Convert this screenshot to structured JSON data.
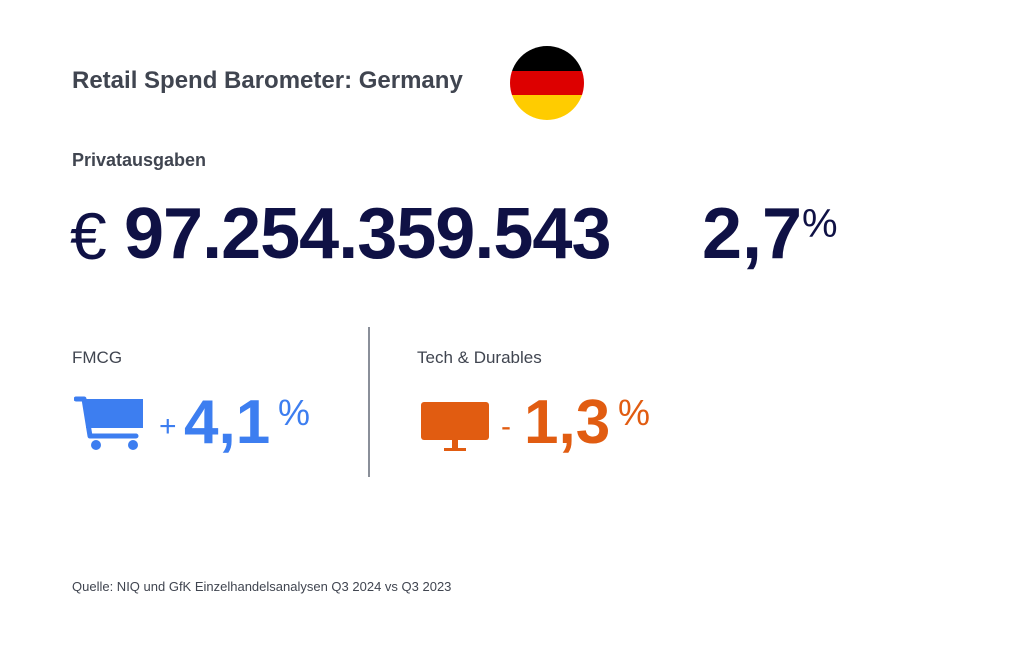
{
  "title": "Retail Spend Barometer: Germany",
  "flag": {
    "name": "germany-flag",
    "colors": [
      "#000000",
      "#dd0000",
      "#ffcc00"
    ]
  },
  "private_spending": {
    "label": "Privatausgaben",
    "currency": "€",
    "amount": "97.254.359.543",
    "change_value": "2,7",
    "change_unit": "%",
    "color": "#0f1145"
  },
  "categories": [
    {
      "label": "FMCG",
      "icon": "shopping-cart-icon",
      "sign": "+",
      "value": "4,1",
      "unit": "%",
      "color": "#3d7ef0"
    },
    {
      "label": "Tech & Durables",
      "icon": "monitor-icon",
      "sign": "-",
      "value": "1,3",
      "unit": "%",
      "color": "#e15c11"
    }
  ],
  "source": "Quelle: NIQ und GfK Einzelhandelsanalysen Q3 2024 vs Q3 2023"
}
